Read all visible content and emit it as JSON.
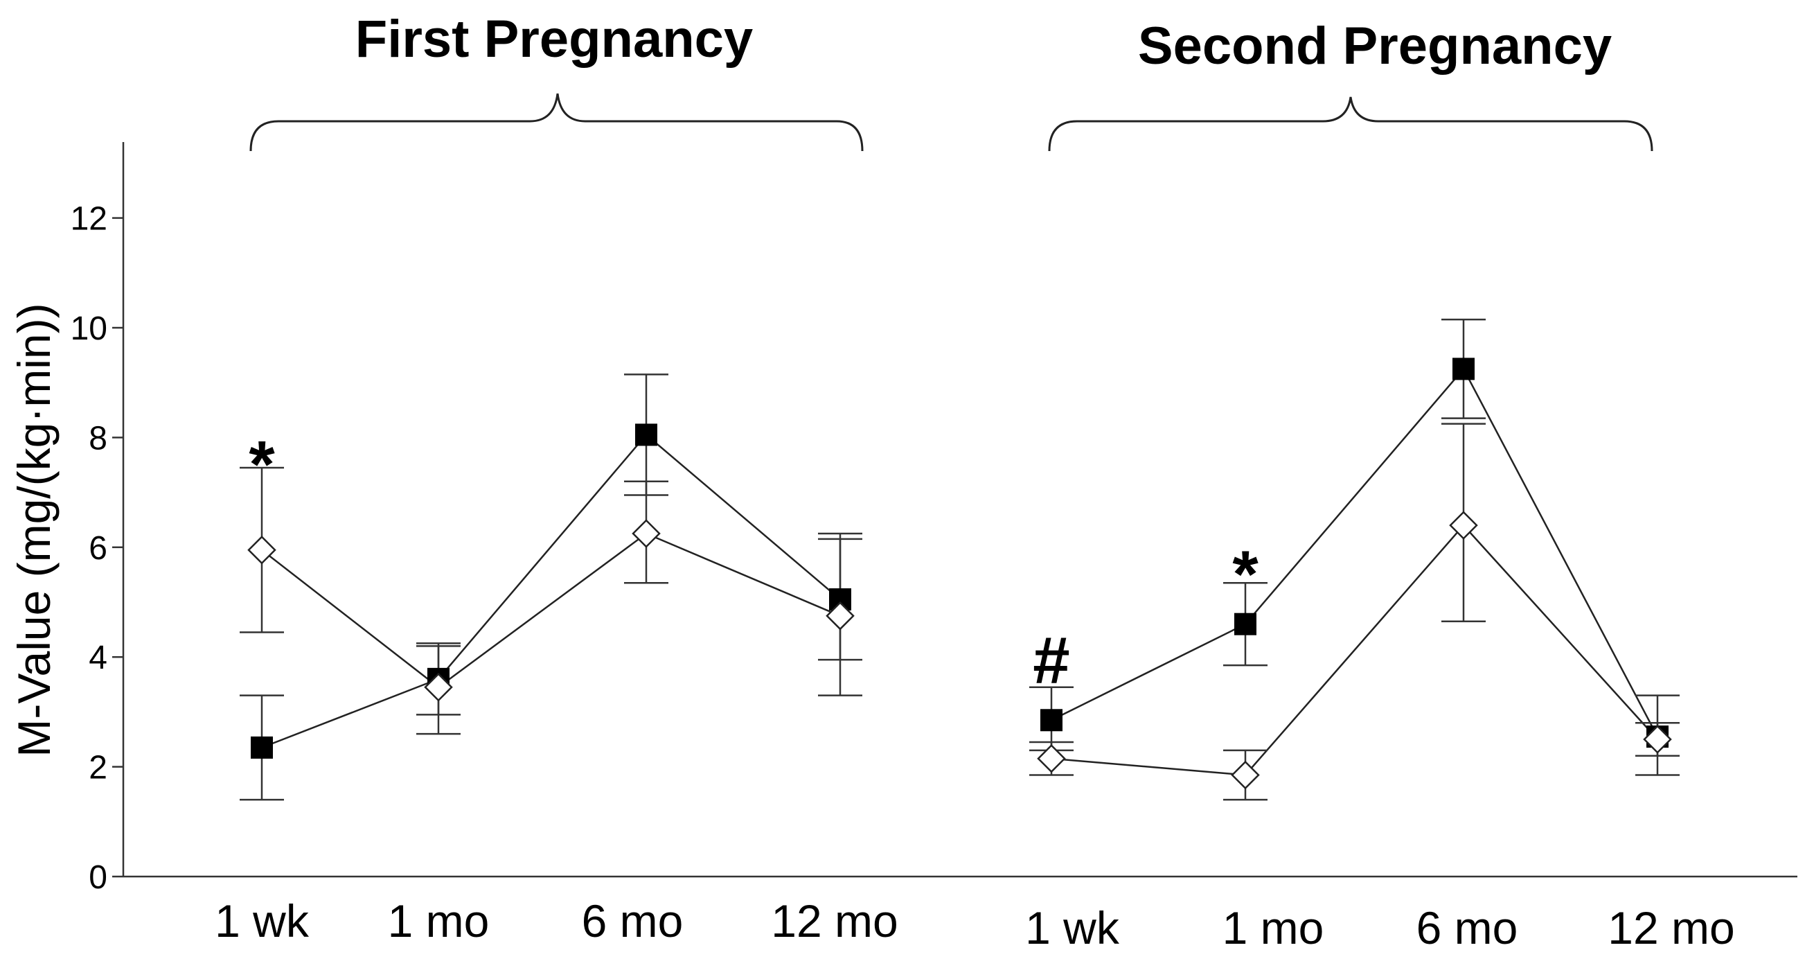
{
  "chart_data": {
    "type": "line",
    "ylabel": "M-Value (mg/(kg·min))",
    "ylim": [
      0,
      13
    ],
    "yticks": [
      "0",
      "2",
      "4",
      "6",
      "8",
      "10",
      "12"
    ],
    "panels": [
      {
        "title": "First Pregnancy",
        "categories": [
          "1 wk",
          "1 mo",
          "6 mo",
          "12 mo"
        ],
        "series": [
          {
            "name": "filled-square",
            "marker": "square",
            "values": [
              2.35,
              3.6,
              8.05,
              5.05
            ],
            "error_low": [
              1.4,
              2.95,
              6.95,
              3.95
            ],
            "error_high": [
              3.3,
              4.25,
              9.15,
              6.15
            ]
          },
          {
            "name": "open-diamond",
            "marker": "diamond",
            "values": [
              5.95,
              3.45,
              6.25,
              4.75
            ],
            "error_low": [
              4.45,
              2.6,
              5.35,
              3.3
            ],
            "error_high": [
              7.45,
              4.2,
              7.2,
              6.25
            ]
          }
        ],
        "annotations": [
          {
            "text": "*",
            "category": "1 wk",
            "y": 7.6
          }
        ]
      },
      {
        "title": "Second Pregnancy",
        "categories": [
          "1 wk",
          "1 mo",
          "6 mo",
          "12 mo"
        ],
        "series": [
          {
            "name": "filled-square",
            "marker": "square",
            "values": [
              2.85,
              4.6,
              9.25,
              2.55
            ],
            "error_low": [
              2.3,
              3.85,
              8.35,
              2.2
            ],
            "error_high": [
              3.45,
              5.35,
              10.15,
              2.8
            ]
          },
          {
            "name": "open-diamond",
            "marker": "diamond",
            "values": [
              2.15,
              1.85,
              6.4,
              2.5
            ],
            "error_low": [
              1.85,
              1.4,
              4.65,
              1.85
            ],
            "error_high": [
              2.45,
              2.3,
              8.25,
              3.3
            ]
          }
        ],
        "annotations": [
          {
            "text": "#",
            "category": "1 wk",
            "y": 3.9
          },
          {
            "text": "*",
            "category": "1 mo",
            "y": 5.6
          }
        ]
      }
    ]
  }
}
